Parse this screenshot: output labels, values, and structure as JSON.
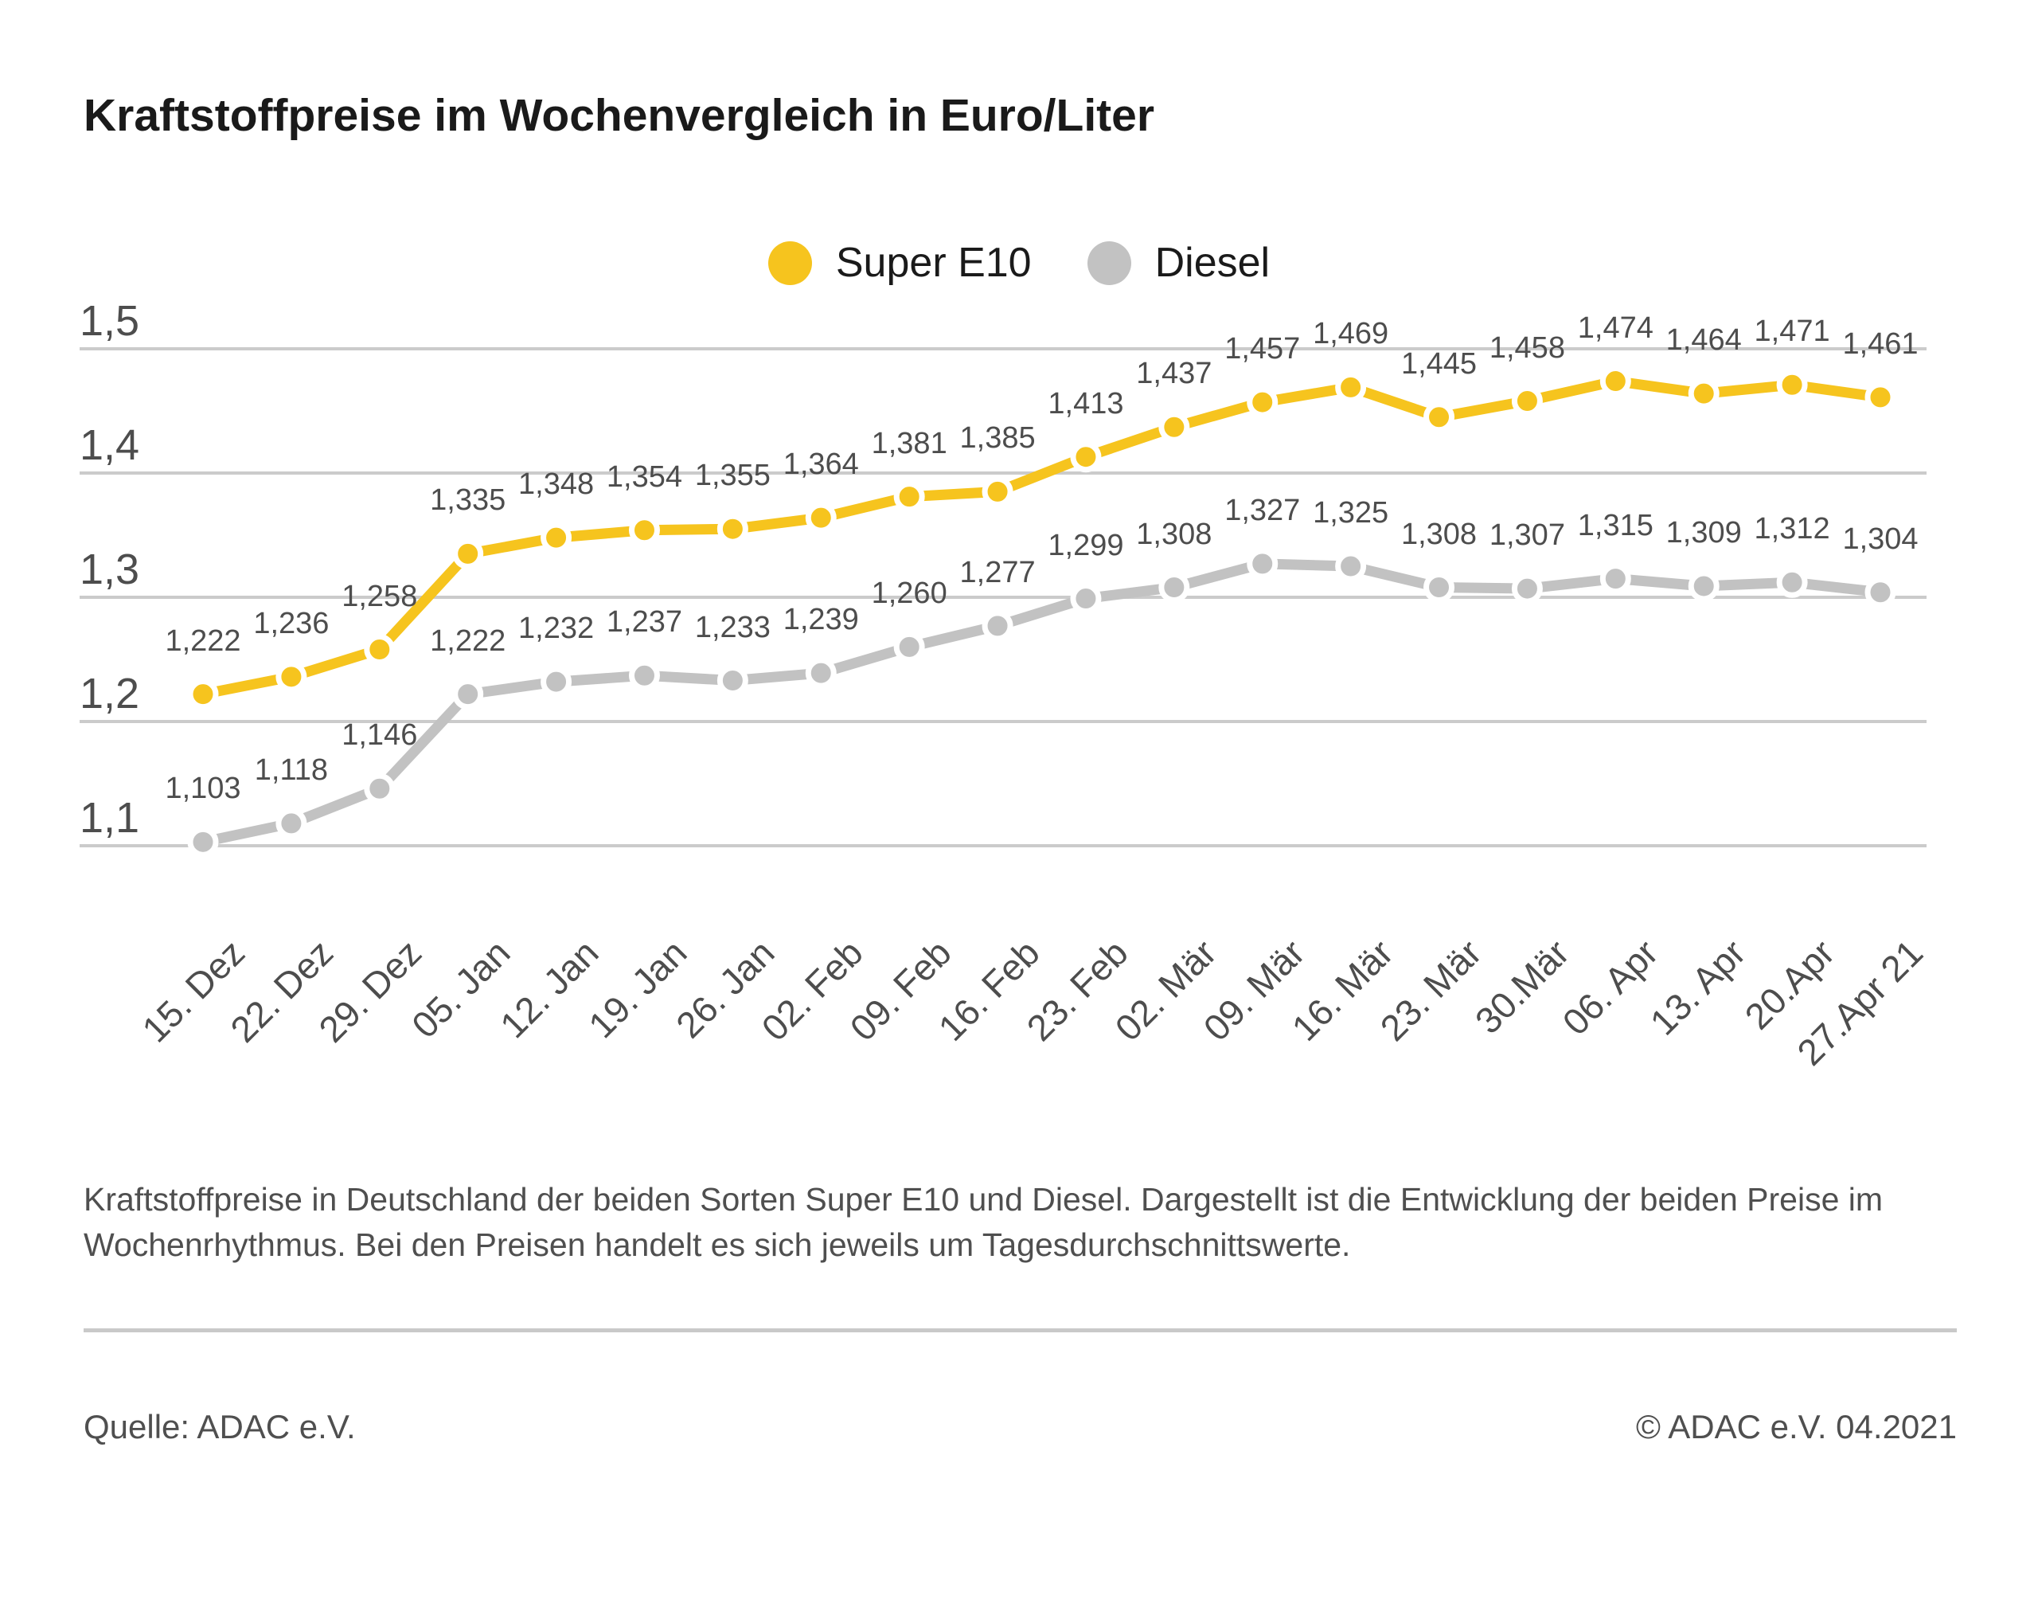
{
  "title": "Kraftstoffpreise im Wochenvergleich in Euro/Liter",
  "chart_data": {
    "type": "line",
    "title": "Kraftstoffpreise im Wochenvergleich in Euro/Liter",
    "unit": "Euro/Liter",
    "categories": [
      "15. Dez",
      "22. Dez",
      "29. Dez",
      "05. Jan",
      "12. Jan",
      "19. Jan",
      "26. Jan",
      "02. Feb",
      "09. Feb",
      "16. Feb",
      "23. Feb",
      "02. Mär",
      "09. Mär",
      "16. Mär",
      "23. Mär",
      "30.Mär",
      "06. Apr",
      "13. Apr",
      "20.Apr",
      "27.Apr 21"
    ],
    "series": [
      {
        "name": "Super E10",
        "color": "#f6c41e",
        "values": [
          1.222,
          1.236,
          1.258,
          1.335,
          1.348,
          1.354,
          1.355,
          1.364,
          1.381,
          1.385,
          1.413,
          1.437,
          1.457,
          1.469,
          1.445,
          1.458,
          1.474,
          1.464,
          1.471,
          1.461
        ],
        "value_labels": [
          "1,222",
          "1,236",
          "1,258",
          "1,335",
          "1,348",
          "1,354",
          "1,355",
          "1,364",
          "1,381",
          "1,385",
          "1,413",
          "1,437",
          "1,457",
          "1,469",
          "1,445",
          "1,458",
          "1,474",
          "1,464",
          "1,471",
          "1,461"
        ]
      },
      {
        "name": "Diesel",
        "color": "#c2c2c2",
        "values": [
          1.103,
          1.118,
          1.146,
          1.222,
          1.232,
          1.237,
          1.233,
          1.239,
          1.26,
          1.277,
          1.299,
          1.308,
          1.327,
          1.325,
          1.308,
          1.307,
          1.315,
          1.309,
          1.312,
          1.304
        ],
        "value_labels": [
          "1,103",
          "1,118",
          "1,146",
          "1,222",
          "1,232",
          "1,237",
          "1,233",
          "1,239",
          "1,260",
          "1,277",
          "1,299",
          "1,308",
          "1,327",
          "1,325",
          "1,308",
          "1,307",
          "1,315",
          "1,309",
          "1,312",
          "1,304"
        ]
      }
    ],
    "yticks": [
      {
        "value": 1.5,
        "label": "1,5"
      },
      {
        "value": 1.4,
        "label": "1,4"
      },
      {
        "value": 1.3,
        "label": "1,3"
      },
      {
        "value": 1.2,
        "label": "1,2"
      },
      {
        "value": 1.1,
        "label": "1,1"
      }
    ],
    "ylim": [
      1.05,
      1.55
    ],
    "grid": "horizontal",
    "gridline_color": "#cbcbcb",
    "legend_position": "top-center"
  },
  "caption_lines": [
    "Kraftstoffpreise in Deutschland der beiden Sorten Super E10 und Diesel. Dargestellt ist die Entwicklung der beiden Preise im",
    "Wochenrhythmus. Bei den Preisen handelt es sich jeweils um Tagesdurchschnittswerte."
  ],
  "footer": {
    "source": "Quelle: ADAC e.V.",
    "copyright": "© ADAC e.V. 04.2021"
  }
}
